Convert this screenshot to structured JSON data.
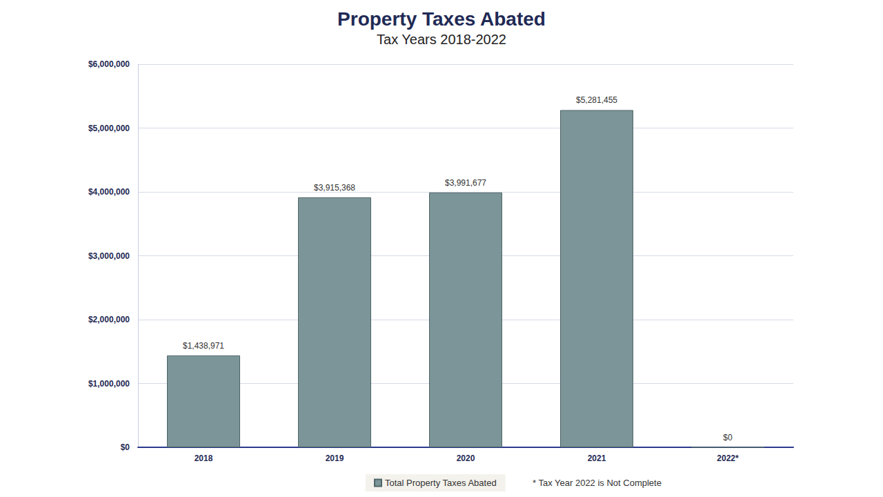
{
  "chart_data": {
    "type": "bar",
    "title": "Property Taxes Abated",
    "subtitle": "Tax Years 2018-2022",
    "categories": [
      "2018",
      "2019",
      "2020",
      "2021",
      "2022*"
    ],
    "series": [
      {
        "name": "Total Property Taxes Abated",
        "color": "#7b9598",
        "values": [
          1438971,
          3915368,
          3991677,
          5281455,
          0
        ],
        "value_labels": [
          "$1,438,971",
          "$3,915,368",
          "$3,991,677",
          "$5,281,455",
          "$0"
        ]
      }
    ],
    "ylim": [
      0,
      6000000
    ],
    "yticks": [
      {
        "value": 0,
        "label": "$0"
      },
      {
        "value": 1000000,
        "label": "$1,000,000"
      },
      {
        "value": 2000000,
        "label": "$2,000,000"
      },
      {
        "value": 3000000,
        "label": "$3,000,000"
      },
      {
        "value": 4000000,
        "label": "$4,000,000"
      },
      {
        "value": 5000000,
        "label": "$5,000,000"
      },
      {
        "value": 6000000,
        "label": "$6,000,000"
      }
    ],
    "grid": true,
    "data_labels": true,
    "legend": "bottom",
    "note": "* Tax Year 2022 is Not Complete"
  }
}
